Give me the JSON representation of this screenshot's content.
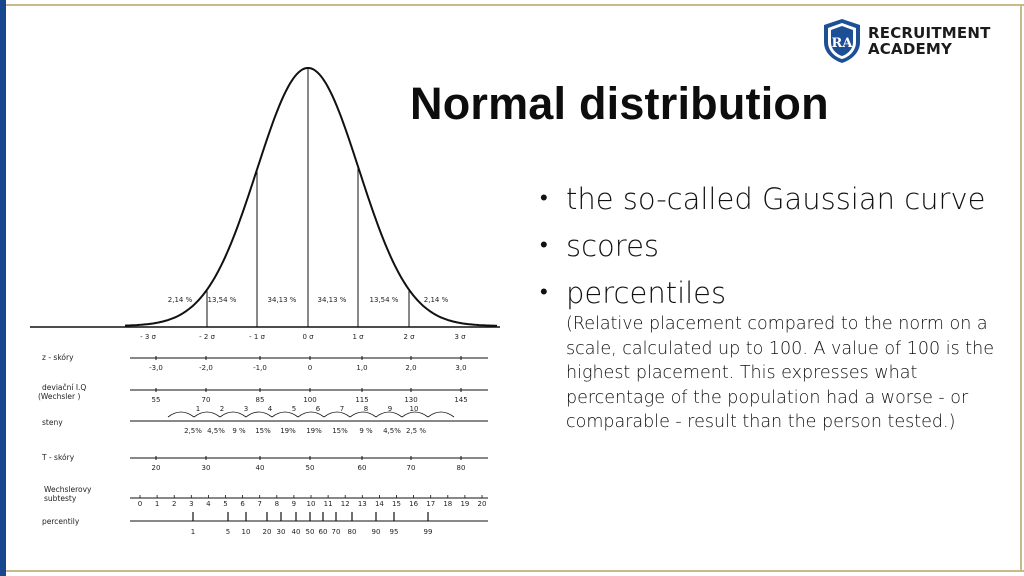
{
  "logo": {
    "monogram": "RA",
    "line1": "RECRUITMENT",
    "line2": "ACADEMY"
  },
  "title": "Normal distribution",
  "bullets": [
    {
      "text": "the so-called Gaussian curve"
    },
    {
      "text": "scores"
    },
    {
      "text": "percentiles",
      "sub": "(Relative placement compared to the norm on a scale, calculated up to 100. A value of 100 is the highest placement. This expresses what percentage of the population had a worse - or comparable - result than the person tested.)"
    }
  ],
  "figure": {
    "areas": [
      "2,14 %",
      "13,54 %",
      "34,13 %",
      "34,13 %",
      "13,54 %",
      "2,14 %"
    ],
    "sigma_labels": [
      "- 3 σ",
      "- 2 σ",
      "- 1 σ",
      "0 σ",
      "1 σ",
      "2 σ",
      "3 σ"
    ],
    "rows": [
      {
        "label": "z - skóry",
        "values": [
          "-3,0",
          "-2,0",
          "-1,0",
          "0",
          "1,0",
          "2,0",
          "3,0"
        ]
      },
      {
        "label": "deviační I.Q (Wechsler )",
        "values": [
          "55",
          "70",
          "85",
          "100",
          "115",
          "130",
          "145"
        ]
      },
      {
        "label": "steny",
        "top": [
          "1",
          "2",
          "3",
          "4",
          "5",
          "6",
          "7",
          "8",
          "9",
          "10"
        ],
        "values": [
          "2,5%",
          "4,5%",
          "9 %",
          "15%",
          "19%",
          "19%",
          "15%",
          "9 %",
          "4,5%",
          "2,5 %"
        ]
      },
      {
        "label": "T - skóry",
        "values": [
          "20",
          "30",
          "40",
          "50",
          "60",
          "70",
          "80"
        ]
      },
      {
        "label": "Wechslerovy subtesty",
        "values": [
          "0",
          "1",
          "2",
          "3",
          "4",
          "5",
          "6",
          "7",
          "8",
          "9",
          "10",
          "11",
          "12",
          "13",
          "14",
          "15",
          "16",
          "17",
          "18",
          "19",
          "20"
        ]
      },
      {
        "label": "percentily",
        "values": [
          "1",
          "5",
          "10",
          "20",
          "30",
          "40",
          "50",
          "60",
          "70",
          "80",
          "90",
          "95",
          "99"
        ]
      }
    ]
  }
}
